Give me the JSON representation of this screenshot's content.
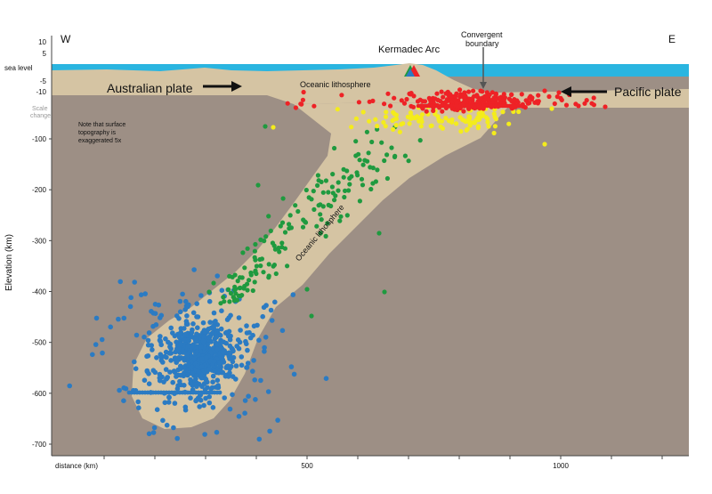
{
  "directions": {
    "west": "W",
    "east": "E"
  },
  "labels": {
    "arc": "Kermadec Arc",
    "convergent_line1": "Convergent",
    "convergent_line2": "boundary",
    "australian_plate": "Australian plate",
    "pacific_plate": "Pacific plate",
    "oceanic_lithosphere_top": "Oceanic lithosphere",
    "oceanic_lithosphere_slab": "Oceanic lithosphere",
    "note_line1": "Note that surface",
    "note_line2": "topography is",
    "note_line3": "exaggerated 5x",
    "scale_change_line1": "Scale",
    "scale_change_line2": "change",
    "sea_level": "sea level"
  },
  "axes": {
    "y_label": "Elevation (km)",
    "x_label": "distance (km)",
    "y_ticks_top": [
      "10",
      "5",
      "-5",
      "-10"
    ],
    "y_ticks_main": [
      "-100",
      "-200",
      "-300",
      "-400",
      "-500",
      "-600",
      "-700"
    ],
    "y_ticks_main_values": [
      -100,
      -200,
      -300,
      -400,
      -500,
      -600,
      -700
    ],
    "x_ticks": [
      "500",
      "1000"
    ],
    "x_ticks_values": [
      500,
      1000
    ]
  },
  "colors": {
    "mantle": "#9d8f85",
    "lithosphere": "#d5c4a3",
    "ocean": "#2ab5e0",
    "shallow_quake": "#ee2226",
    "mid_quake": "#f4ec1c",
    "intermediate_quake": "#1f9a3f",
    "deep_quake": "#2b7bc3"
  }
}
